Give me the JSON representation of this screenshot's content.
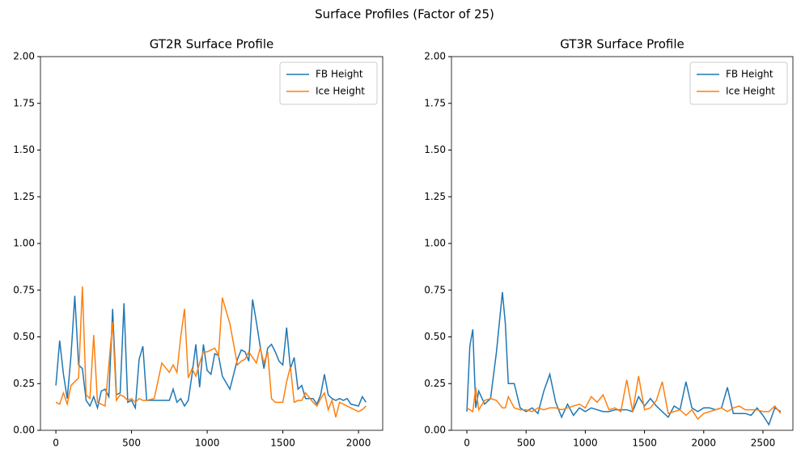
{
  "title": "Surface Profiles (Factor of 25)",
  "chart_data": [
    {
      "type": "line",
      "title": "GT2R Surface Profile",
      "legend": "upper right",
      "x": [
        0,
        25,
        50,
        75,
        100,
        125,
        150,
        175,
        200,
        225,
        250,
        275,
        300,
        325,
        350,
        375,
        400,
        425,
        450,
        475,
        500,
        525,
        550,
        575,
        600,
        650,
        700,
        750,
        775,
        800,
        825,
        850,
        875,
        900,
        925,
        950,
        975,
        1000,
        1025,
        1050,
        1075,
        1100,
        1150,
        1200,
        1225,
        1250,
        1275,
        1300,
        1325,
        1350,
        1375,
        1400,
        1425,
        1450,
        1475,
        1500,
        1525,
        1550,
        1575,
        1600,
        1625,
        1650,
        1700,
        1725,
        1750,
        1775,
        1800,
        1825,
        1850,
        1875,
        1900,
        1925,
        1950,
        2000,
        2025,
        2050
      ],
      "series": [
        {
          "name": "FB Height",
          "color": "#1f77b4",
          "values": [
            0.24,
            0.48,
            0.3,
            0.17,
            0.4,
            0.72,
            0.35,
            0.33,
            0.16,
            0.13,
            0.18,
            0.12,
            0.21,
            0.22,
            0.18,
            0.65,
            0.19,
            0.2,
            0.68,
            0.15,
            0.16,
            0.12,
            0.38,
            0.45,
            0.16,
            0.16,
            0.16,
            0.16,
            0.22,
            0.15,
            0.17,
            0.13,
            0.16,
            0.3,
            0.46,
            0.23,
            0.46,
            0.32,
            0.3,
            0.41,
            0.4,
            0.29,
            0.22,
            0.38,
            0.43,
            0.42,
            0.37,
            0.7,
            0.58,
            0.45,
            0.33,
            0.44,
            0.46,
            0.42,
            0.37,
            0.35,
            0.55,
            0.33,
            0.39,
            0.22,
            0.24,
            0.17,
            0.17,
            0.14,
            0.19,
            0.3,
            0.19,
            0.17,
            0.16,
            0.17,
            0.16,
            0.17,
            0.14,
            0.13,
            0.18,
            0.15
          ]
        },
        {
          "name": "Ice Height",
          "color": "#ff7f0e",
          "values": [
            0.15,
            0.14,
            0.2,
            0.14,
            0.24,
            0.26,
            0.28,
            0.77,
            0.19,
            0.17,
            0.51,
            0.15,
            0.14,
            0.13,
            0.35,
            0.58,
            0.16,
            0.19,
            0.18,
            0.16,
            0.17,
            0.15,
            0.17,
            0.16,
            0.16,
            0.17,
            0.36,
            0.31,
            0.35,
            0.31,
            0.5,
            0.65,
            0.28,
            0.33,
            0.29,
            0.36,
            0.42,
            0.42,
            0.43,
            0.44,
            0.4,
            0.71,
            0.57,
            0.35,
            0.37,
            0.38,
            0.42,
            0.39,
            0.36,
            0.44,
            0.36,
            0.42,
            0.17,
            0.15,
            0.15,
            0.15,
            0.26,
            0.34,
            0.15,
            0.16,
            0.16,
            0.2,
            0.15,
            0.13,
            0.17,
            0.2,
            0.11,
            0.16,
            0.07,
            0.15,
            0.14,
            0.13,
            0.12,
            0.1,
            0.11,
            0.13
          ]
        }
      ],
      "xlim": [
        -102,
        2160
      ],
      "xticks": [
        0,
        500,
        1000,
        1500,
        2000
      ],
      "ylim": [
        0,
        2
      ],
      "yticks": [
        {
          "value": 0,
          "label": "0.00"
        },
        {
          "value": 0.25,
          "label": "0.25"
        },
        {
          "value": 0.5,
          "label": "0.50"
        },
        {
          "value": 0.75,
          "label": "0.75"
        },
        {
          "value": 1,
          "label": "1.00"
        },
        {
          "value": 1.25,
          "label": "1.25"
        },
        {
          "value": 1.5,
          "label": "1.50"
        },
        {
          "value": 1.75,
          "label": "1.75"
        },
        {
          "value": 2,
          "label": "2.00"
        }
      ]
    },
    {
      "type": "line",
      "title": "GT3R Surface Profile",
      "legend": "upper right",
      "x": [
        0,
        25,
        50,
        75,
        100,
        150,
        200,
        250,
        300,
        325,
        350,
        400,
        450,
        500,
        550,
        600,
        650,
        700,
        750,
        800,
        850,
        900,
        950,
        1000,
        1050,
        1100,
        1150,
        1200,
        1250,
        1300,
        1350,
        1400,
        1450,
        1500,
        1550,
        1600,
        1650,
        1700,
        1750,
        1800,
        1850,
        1900,
        1950,
        2000,
        2050,
        2100,
        2150,
        2200,
        2250,
        2300,
        2350,
        2400,
        2450,
        2500,
        2550,
        2600,
        2650
      ],
      "series": [
        {
          "name": "FB Height",
          "color": "#1f77b4",
          "values": [
            0.1,
            0.45,
            0.54,
            0.12,
            0.21,
            0.14,
            0.17,
            0.42,
            0.74,
            0.57,
            0.25,
            0.25,
            0.12,
            0.1,
            0.12,
            0.09,
            0.21,
            0.3,
            0.15,
            0.07,
            0.14,
            0.08,
            0.12,
            0.1,
            0.12,
            0.11,
            0.1,
            0.1,
            0.11,
            0.11,
            0.11,
            0.1,
            0.18,
            0.13,
            0.17,
            0.13,
            0.1,
            0.07,
            0.13,
            0.11,
            0.26,
            0.12,
            0.1,
            0.12,
            0.12,
            0.11,
            0.12,
            0.23,
            0.09,
            0.09,
            0.09,
            0.08,
            0.12,
            0.08,
            0.03,
            0.12,
            0.1
          ]
        },
        {
          "name": "Ice Height",
          "color": "#ff7f0e",
          "values": [
            0.12,
            0.11,
            0.1,
            0.23,
            0.11,
            0.16,
            0.17,
            0.16,
            0.12,
            0.12,
            0.18,
            0.12,
            0.11,
            0.11,
            0.1,
            0.12,
            0.11,
            0.12,
            0.12,
            0.11,
            0.12,
            0.13,
            0.14,
            0.12,
            0.18,
            0.15,
            0.19,
            0.11,
            0.12,
            0.1,
            0.27,
            0.1,
            0.29,
            0.11,
            0.12,
            0.16,
            0.26,
            0.09,
            0.1,
            0.11,
            0.08,
            0.11,
            0.06,
            0.09,
            0.1,
            0.11,
            0.12,
            0.1,
            0.12,
            0.13,
            0.11,
            0.11,
            0.11,
            0.1,
            0.1,
            0.13,
            0.09
          ]
        }
      ],
      "xlim": [
        -130,
        2753
      ],
      "xticks": [
        0,
        500,
        1000,
        1500,
        2000,
        2500
      ],
      "ylim": [
        0,
        2
      ],
      "yticks": [
        {
          "value": 0,
          "label": "0.00"
        },
        {
          "value": 0.25,
          "label": "0.25"
        },
        {
          "value": 0.5,
          "label": "0.50"
        },
        {
          "value": 0.75,
          "label": "0.75"
        },
        {
          "value": 1,
          "label": "1.00"
        },
        {
          "value": 1.25,
          "label": "1.25"
        },
        {
          "value": 1.5,
          "label": "1.50"
        },
        {
          "value": 1.75,
          "label": "1.75"
        },
        {
          "value": 2,
          "label": "2.00"
        }
      ]
    }
  ]
}
